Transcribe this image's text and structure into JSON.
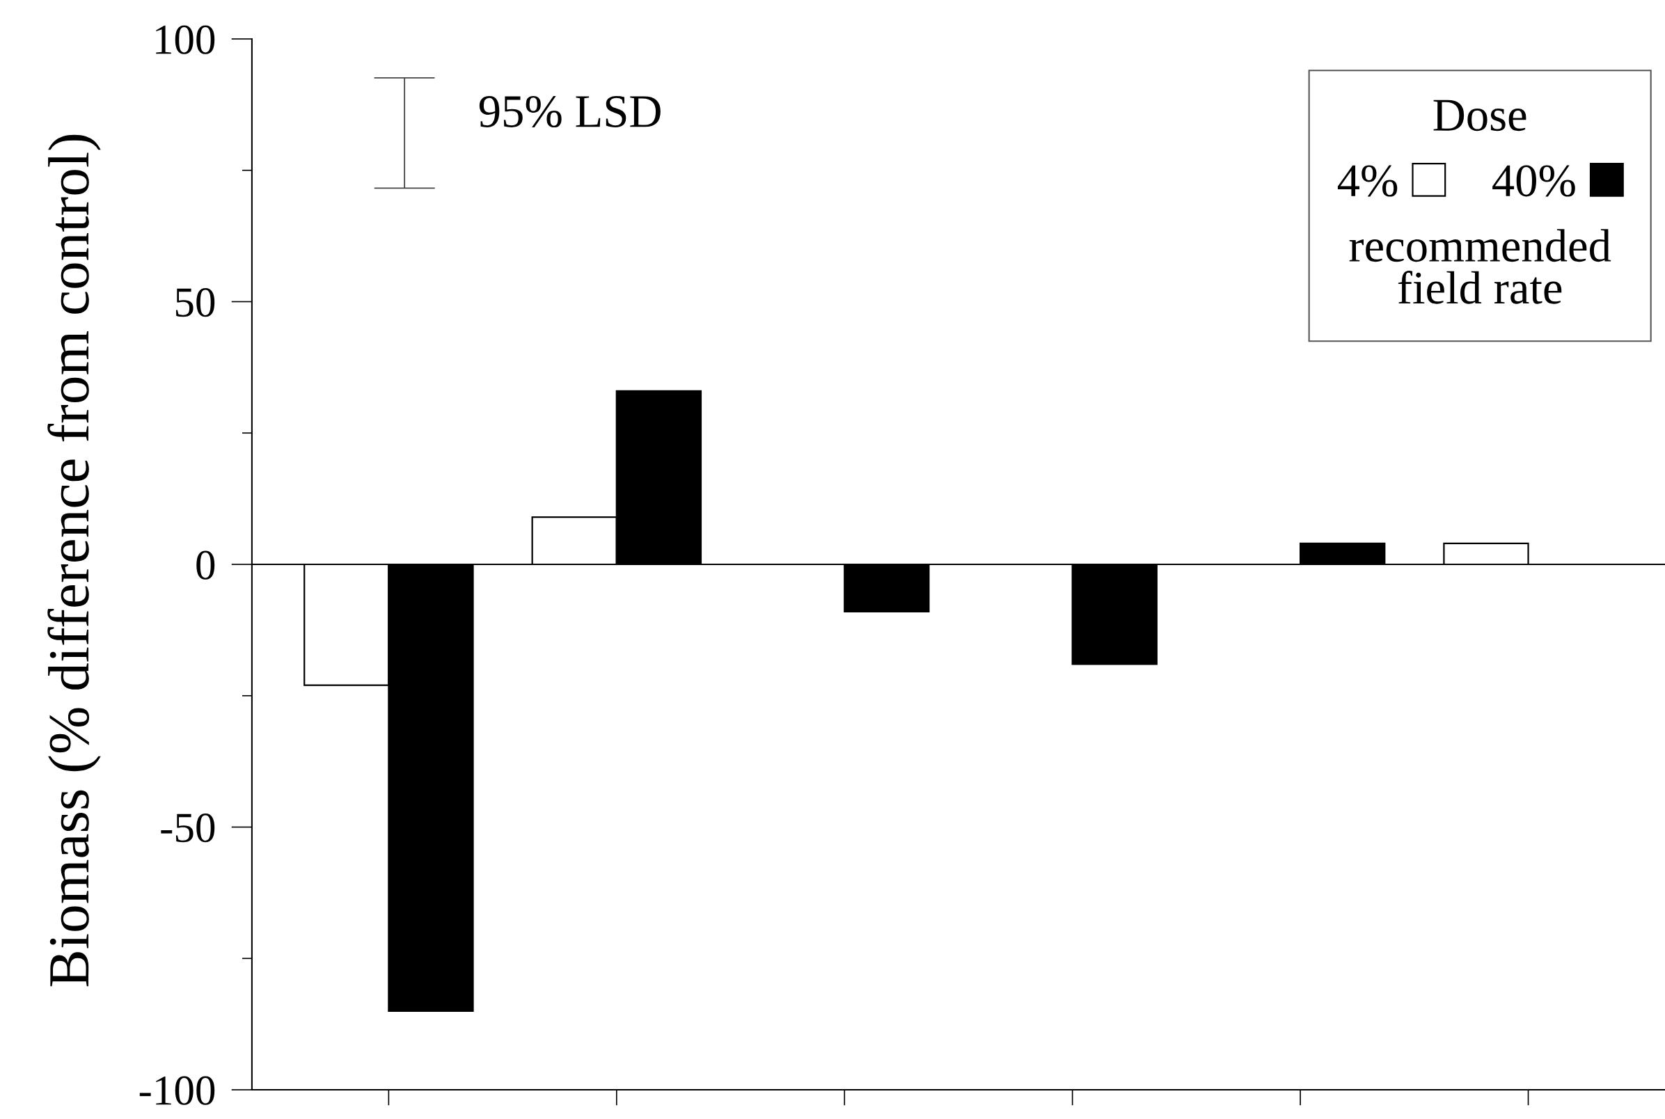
{
  "chart_data": {
    "type": "bar",
    "ylabel": "Biomass (% difference from control)",
    "legend_title": "Dose",
    "categories": [
      null,
      null,
      null,
      null,
      null,
      null
    ],
    "series": [
      {
        "name": "4%",
        "color": "#ffffff",
        "values": [
          -23,
          9,
          null,
          null,
          null,
          4
        ]
      },
      {
        "name": "40%",
        "color": "#000000",
        "values": [
          -85,
          33,
          -9,
          -19,
          4,
          null
        ]
      }
    ],
    "ylim": [
      -100,
      100
    ],
    "yticks": [
      -100,
      {
        "value": -75,
        "label": null
      },
      -50,
      {
        "value": -25,
        "label": null
      },
      0,
      {
        "value": 25,
        "label": null
      },
      50,
      {
        "value": 75,
        "label": null
      },
      100
    ],
    "tick_labels": "y",
    "legend": "top right",
    "ref_lines": [
      {
        "axis": "y",
        "value": 0,
        "color": "#000000"
      }
    ],
    "annotations": [
      "95% LSD",
      "recommended\nfield rate"
    ]
  }
}
